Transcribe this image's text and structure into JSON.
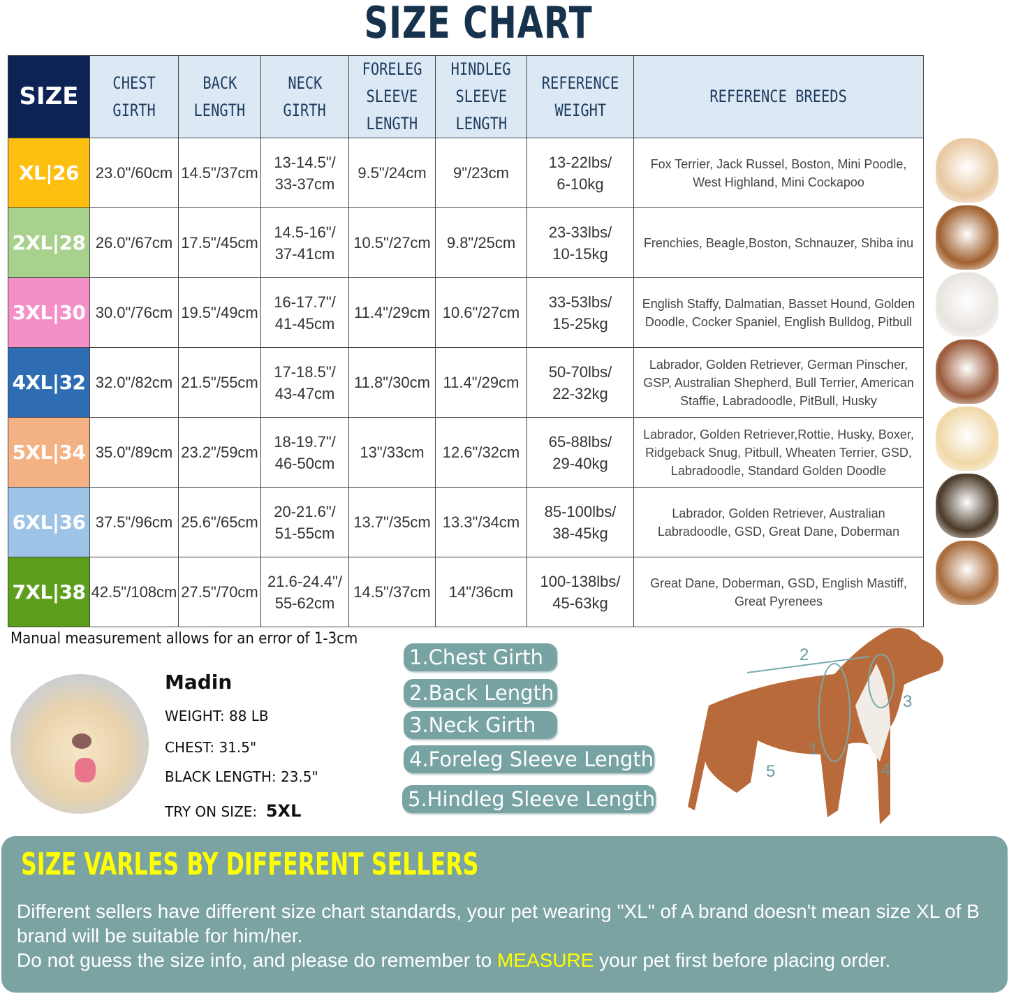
{
  "title": "SIZE CHART",
  "headers": {
    "size": "SIZE",
    "chest": [
      "CHEST",
      "GIRTH"
    ],
    "back": [
      "BACK",
      "LENGTH"
    ],
    "neck": [
      "NECK",
      "GIRTH"
    ],
    "foreleg": [
      "FORELEG",
      "SLEEVE",
      "LENGTH"
    ],
    "hindleg": [
      "HINDLEG",
      "SLEEVE",
      "LENGTH"
    ],
    "weight": [
      "REFERENCE",
      "WEIGHT"
    ],
    "breeds": "REFERENCE  BREEDS"
  },
  "rows": [
    {
      "size": "XL|26",
      "color": "#fdbf10",
      "chest": "23.0\"/60cm",
      "back": "14.5\"/37cm",
      "neck": [
        "13-14.5\"/",
        "33-37cm"
      ],
      "foreleg": "9.5\"/24cm",
      "hindleg": "9\"/23cm",
      "weight": [
        "13-22lbs/",
        "6-10kg"
      ],
      "breeds": "Fox Terrier, Jack Russel, Boston, Mini Poodle, West Highland, Mini Cockapoo"
    },
    {
      "size": "2XL|28",
      "color": "#a9d18e",
      "chest": "26.0\"/67cm",
      "back": "17.5\"/45cm",
      "neck": [
        "14.5-16\"/",
        "37-41cm"
      ],
      "foreleg": "10.5\"/27cm",
      "hindleg": "9.8\"/25cm",
      "weight": [
        "23-33lbs/",
        "10-15kg"
      ],
      "breeds": "Frenchies, Beagle,Boston, Schnauzer, Shiba inu"
    },
    {
      "size": "3XL|30",
      "color": "#f58fc8",
      "chest": "30.0\"/76cm",
      "back": "19.5\"/49cm",
      "neck": [
        "16-17.7\"/",
        "41-45cm"
      ],
      "foreleg": "11.4\"/29cm",
      "hindleg": "10.6\"/27cm",
      "weight": [
        "33-53lbs/",
        "15-25kg"
      ],
      "breeds": "English Staffy, Dalmatian, Basset Hound, Golden Doodle, Cocker Spaniel, English Bulldog, Pitbull"
    },
    {
      "size": "4XL|32",
      "color": "#2e6db4",
      "chest": "32.0\"/82cm",
      "back": "21.5\"/55cm",
      "neck": [
        "17-18.5\"/",
        "43-47cm"
      ],
      "foreleg": "11.8\"/30cm",
      "hindleg": "11.4\"/29cm",
      "weight": [
        "50-70lbs/",
        "22-32kg"
      ],
      "breeds": "Labrador, Golden Retriever, German Pinscher, GSP, Australian Shepherd, Bull Terrier, American Staffie, Labradoodle, PitBull, Husky"
    },
    {
      "size": "5XL|34",
      "color": "#f4b183",
      "chest": "35.0\"/89cm",
      "back": "23.2\"/59cm",
      "neck": [
        "18-19.7\"/",
        "46-50cm"
      ],
      "foreleg": "13\"/33cm",
      "hindleg": "12.6\"/32cm",
      "weight": [
        "65-88lbs/",
        "29-40kg"
      ],
      "breeds": "Labrador, Golden Retriever,Rottie, Husky, Boxer, Ridgeback Snug, Pitbull, Wheaten Terrier, GSD, Labradoodle,  Standard Golden Doodle"
    },
    {
      "size": "6XL|36",
      "color": "#9dc3e6",
      "chest": "37.5\"/96cm",
      "back": "25.6\"/65cm",
      "neck": [
        "20-21.6\"/",
        "51-55cm"
      ],
      "foreleg": "13.7\"/35cm",
      "hindleg": "13.3\"/34cm",
      "weight": [
        "85-100lbs/",
        "38-45kg"
      ],
      "breeds": "Labrador, Golden Retriever, Australian Labradoodle, GSD, Great Dane, Doberman"
    },
    {
      "size": "7XL|38",
      "color": "#5e9e1d",
      "chest": "42.5\"/108cm",
      "back": "27.5\"/70cm",
      "neck": [
        "21.6-24.4\"/",
        "55-62cm"
      ],
      "foreleg": "14.5\"/37cm",
      "hindleg": "14\"/36cm",
      "weight": [
        "100-138lbs/",
        "45-63kg"
      ],
      "breeds": "Great Dane, Doberman, GSD, English Mastiff, Great Pyrenees"
    }
  ],
  "note": "Manual measurement allows for an error of 1-3cm",
  "model": {
    "name": "Madin",
    "weight": "WEIGHT: 88 LB",
    "chest": "CHEST: 31.5\"",
    "length": "BLACK LENGTH: 23.5\"",
    "try_label": "TRY ON SIZE:",
    "try_size": "5XL"
  },
  "measurements": [
    "1.Chest Girth",
    "2.Back Length",
    "3.Neck Girth",
    "4.Foreleg Sleeve Length",
    "5.Hindleg Sleeve Length"
  ],
  "diagram_labels": [
    "1",
    "2",
    "3",
    "4",
    "5"
  ],
  "panel": {
    "title": "SIZE VARLES BY DIFFERENT SELLERS",
    "line1": "Different sellers have different size chart standards, your pet wearing \"XL\" of A brand doesn't mean size  XL of B brand will be suitable for him/her.",
    "line2_a": "Do not guess the size info, and please do remember to ",
    "line2_b": "MEASURE",
    "line2_c": " your pet first before placing order."
  },
  "colors": {
    "title": "#17324d",
    "header_bg": "#dce9f5",
    "size_header": "#0e2355",
    "panel": "#7aa3a2",
    "panel_title": "#ffff00",
    "pill": "#78a3a3"
  }
}
